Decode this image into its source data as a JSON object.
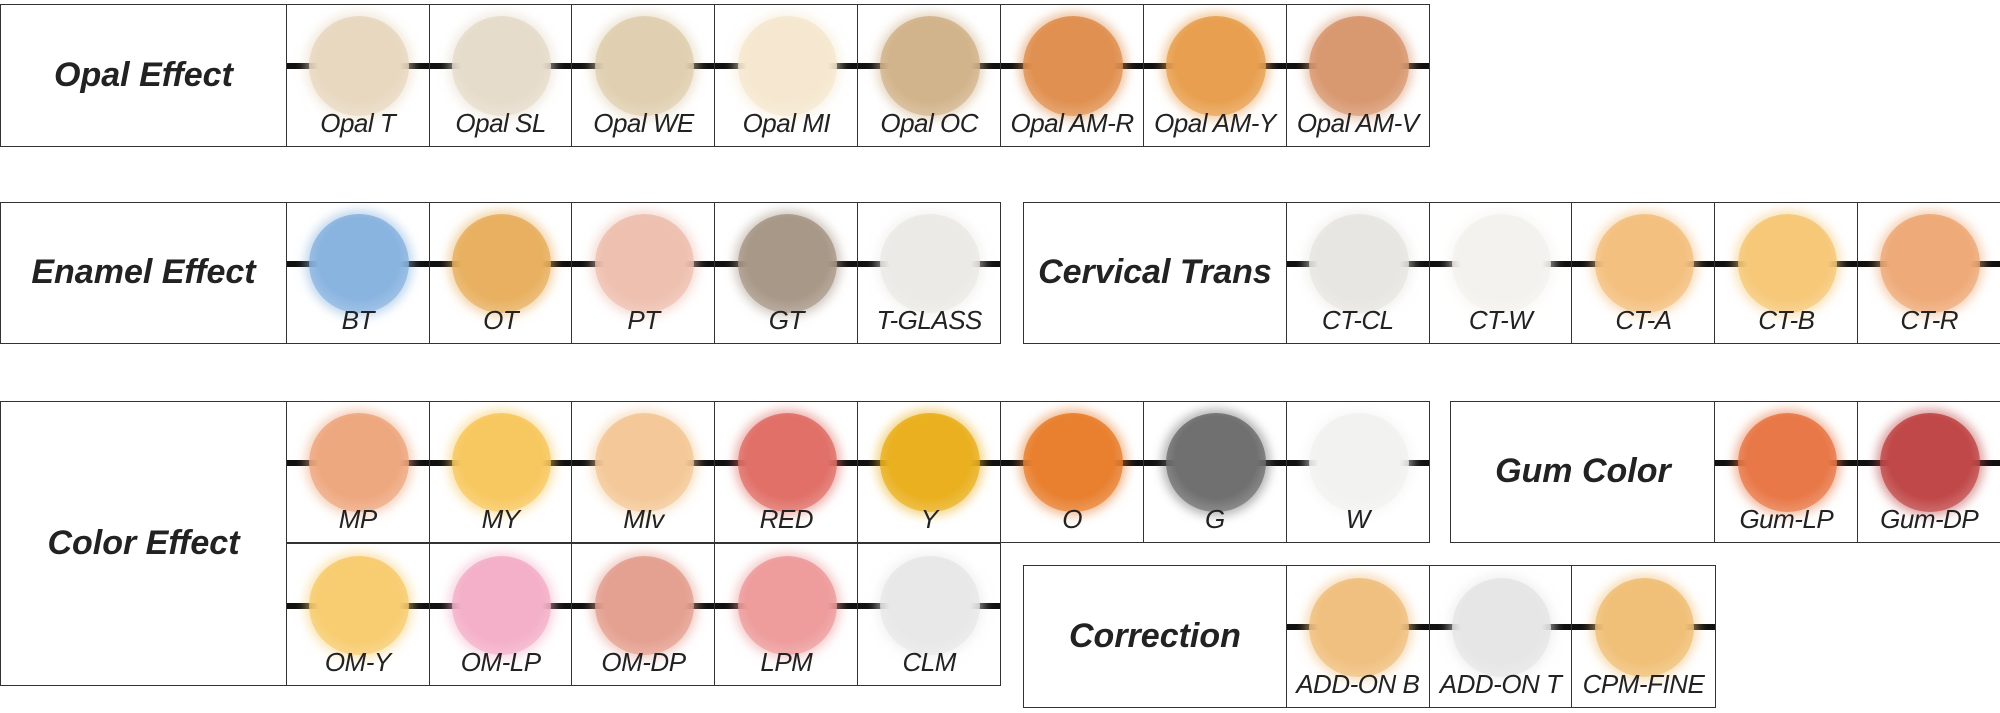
{
  "groups": [
    {
      "title": "Opal Effect",
      "rows": [
        [
          {
            "label": "Opal T",
            "color": "#e8d8c0"
          },
          {
            "label": "Opal SL",
            "color": "#e6dccb"
          },
          {
            "label": "Opal WE",
            "color": "#e0cfb0"
          },
          {
            "label": "Opal MI",
            "color": "#f6e8d0"
          },
          {
            "label": "Opal OC",
            "color": "#d2b48c"
          },
          {
            "label": "Opal AM-R",
            "color": "#e09050"
          },
          {
            "label": "Opal AM-Y",
            "color": "#e8a050"
          },
          {
            "label": "Opal AM-V",
            "color": "#d89870"
          }
        ]
      ]
    },
    {
      "title": "Enamel Effect",
      "rows": [
        [
          {
            "label": "BT",
            "color": "#8ab4e0"
          },
          {
            "label": "OT",
            "color": "#e8b060"
          },
          {
            "label": "PT",
            "color": "#eec0b0"
          },
          {
            "label": "GT",
            "color": "#a89888"
          },
          {
            "label": "T-GLASS",
            "color": "#eceae6"
          }
        ]
      ]
    },
    {
      "title": "Cervical Trans",
      "rows": [
        [
          {
            "label": "CT-CL",
            "color": "#e8e6e2"
          },
          {
            "label": "CT-W",
            "color": "#f4f2ee"
          },
          {
            "label": "CT-A",
            "color": "#f4c080"
          },
          {
            "label": "CT-B",
            "color": "#f6c878"
          },
          {
            "label": "CT-R",
            "color": "#eeaa78"
          }
        ]
      ]
    },
    {
      "title": "Color Effect",
      "rows": [
        [
          {
            "label": "MP",
            "color": "#eea880"
          },
          {
            "label": "MY",
            "color": "#f8c860"
          },
          {
            "label": "MIv",
            "color": "#f4c898"
          },
          {
            "label": "RED",
            "color": "#e07068"
          },
          {
            "label": "Y",
            "color": "#eab020"
          },
          {
            "label": "O",
            "color": "#e88030"
          },
          {
            "label": "G",
            "color": "#707070"
          },
          {
            "label": "W",
            "color": "#f2f2f0"
          }
        ],
        [
          {
            "label": "OM-Y",
            "color": "#f8cc70"
          },
          {
            "label": "OM-LP",
            "color": "#f4b0c8"
          },
          {
            "label": "OM-DP",
            "color": "#e4a090"
          },
          {
            "label": "LPM",
            "color": "#ee9c9c"
          },
          {
            "label": "CLM",
            "color": "#e8e8e8"
          }
        ]
      ]
    },
    {
      "title": "Gum Color",
      "rows": [
        [
          {
            "label": "Gum-LP",
            "color": "#e87848"
          },
          {
            "label": "Gum-DP",
            "color": "#c04848"
          }
        ]
      ]
    },
    {
      "title": "Correction",
      "rows": [
        [
          {
            "label": "ADD-ON B",
            "color": "#f0c080"
          },
          {
            "label": "ADD-ON T",
            "color": "#e6e6e6"
          },
          {
            "label": "CPM-FINE",
            "color": "#f0c078"
          }
        ]
      ]
    }
  ]
}
